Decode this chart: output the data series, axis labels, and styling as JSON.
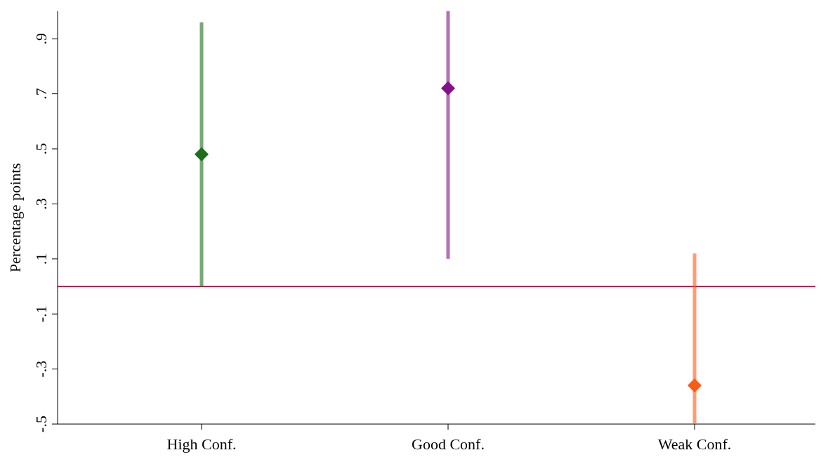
{
  "chart_data": {
    "type": "scatter",
    "ylabel": "Percentage points",
    "categories": [
      "High Conf.",
      "Good Conf.",
      "Weak Conf."
    ],
    "values": [
      0.48,
      0.72,
      -0.36
    ],
    "errors": [
      [
        0.0,
        0.96
      ],
      [
        0.1,
        1.0
      ],
      [
        -0.5,
        0.12
      ]
    ],
    "colors": [
      "#1e6e1e",
      "#84108a",
      "#ff5a14"
    ],
    "marker": "diamond",
    "ylim": [
      -0.5,
      1.0
    ],
    "yticks": [
      {
        "value": -0.5,
        "label": "-.5"
      },
      {
        "value": -0.3,
        "label": "-.3"
      },
      {
        "value": -0.1,
        "label": "-.1"
      },
      {
        "value": 0.1,
        "label": ".1"
      },
      {
        "value": 0.3,
        "label": ".3"
      },
      {
        "value": 0.5,
        "label": ".5"
      },
      {
        "value": 0.7,
        "label": ".7"
      },
      {
        "value": 0.9,
        "label": ".9"
      }
    ],
    "ref_lines": [
      {
        "axis": "y",
        "value": 0,
        "color": "#c8174a"
      }
    ],
    "grid": false,
    "legend": false
  }
}
